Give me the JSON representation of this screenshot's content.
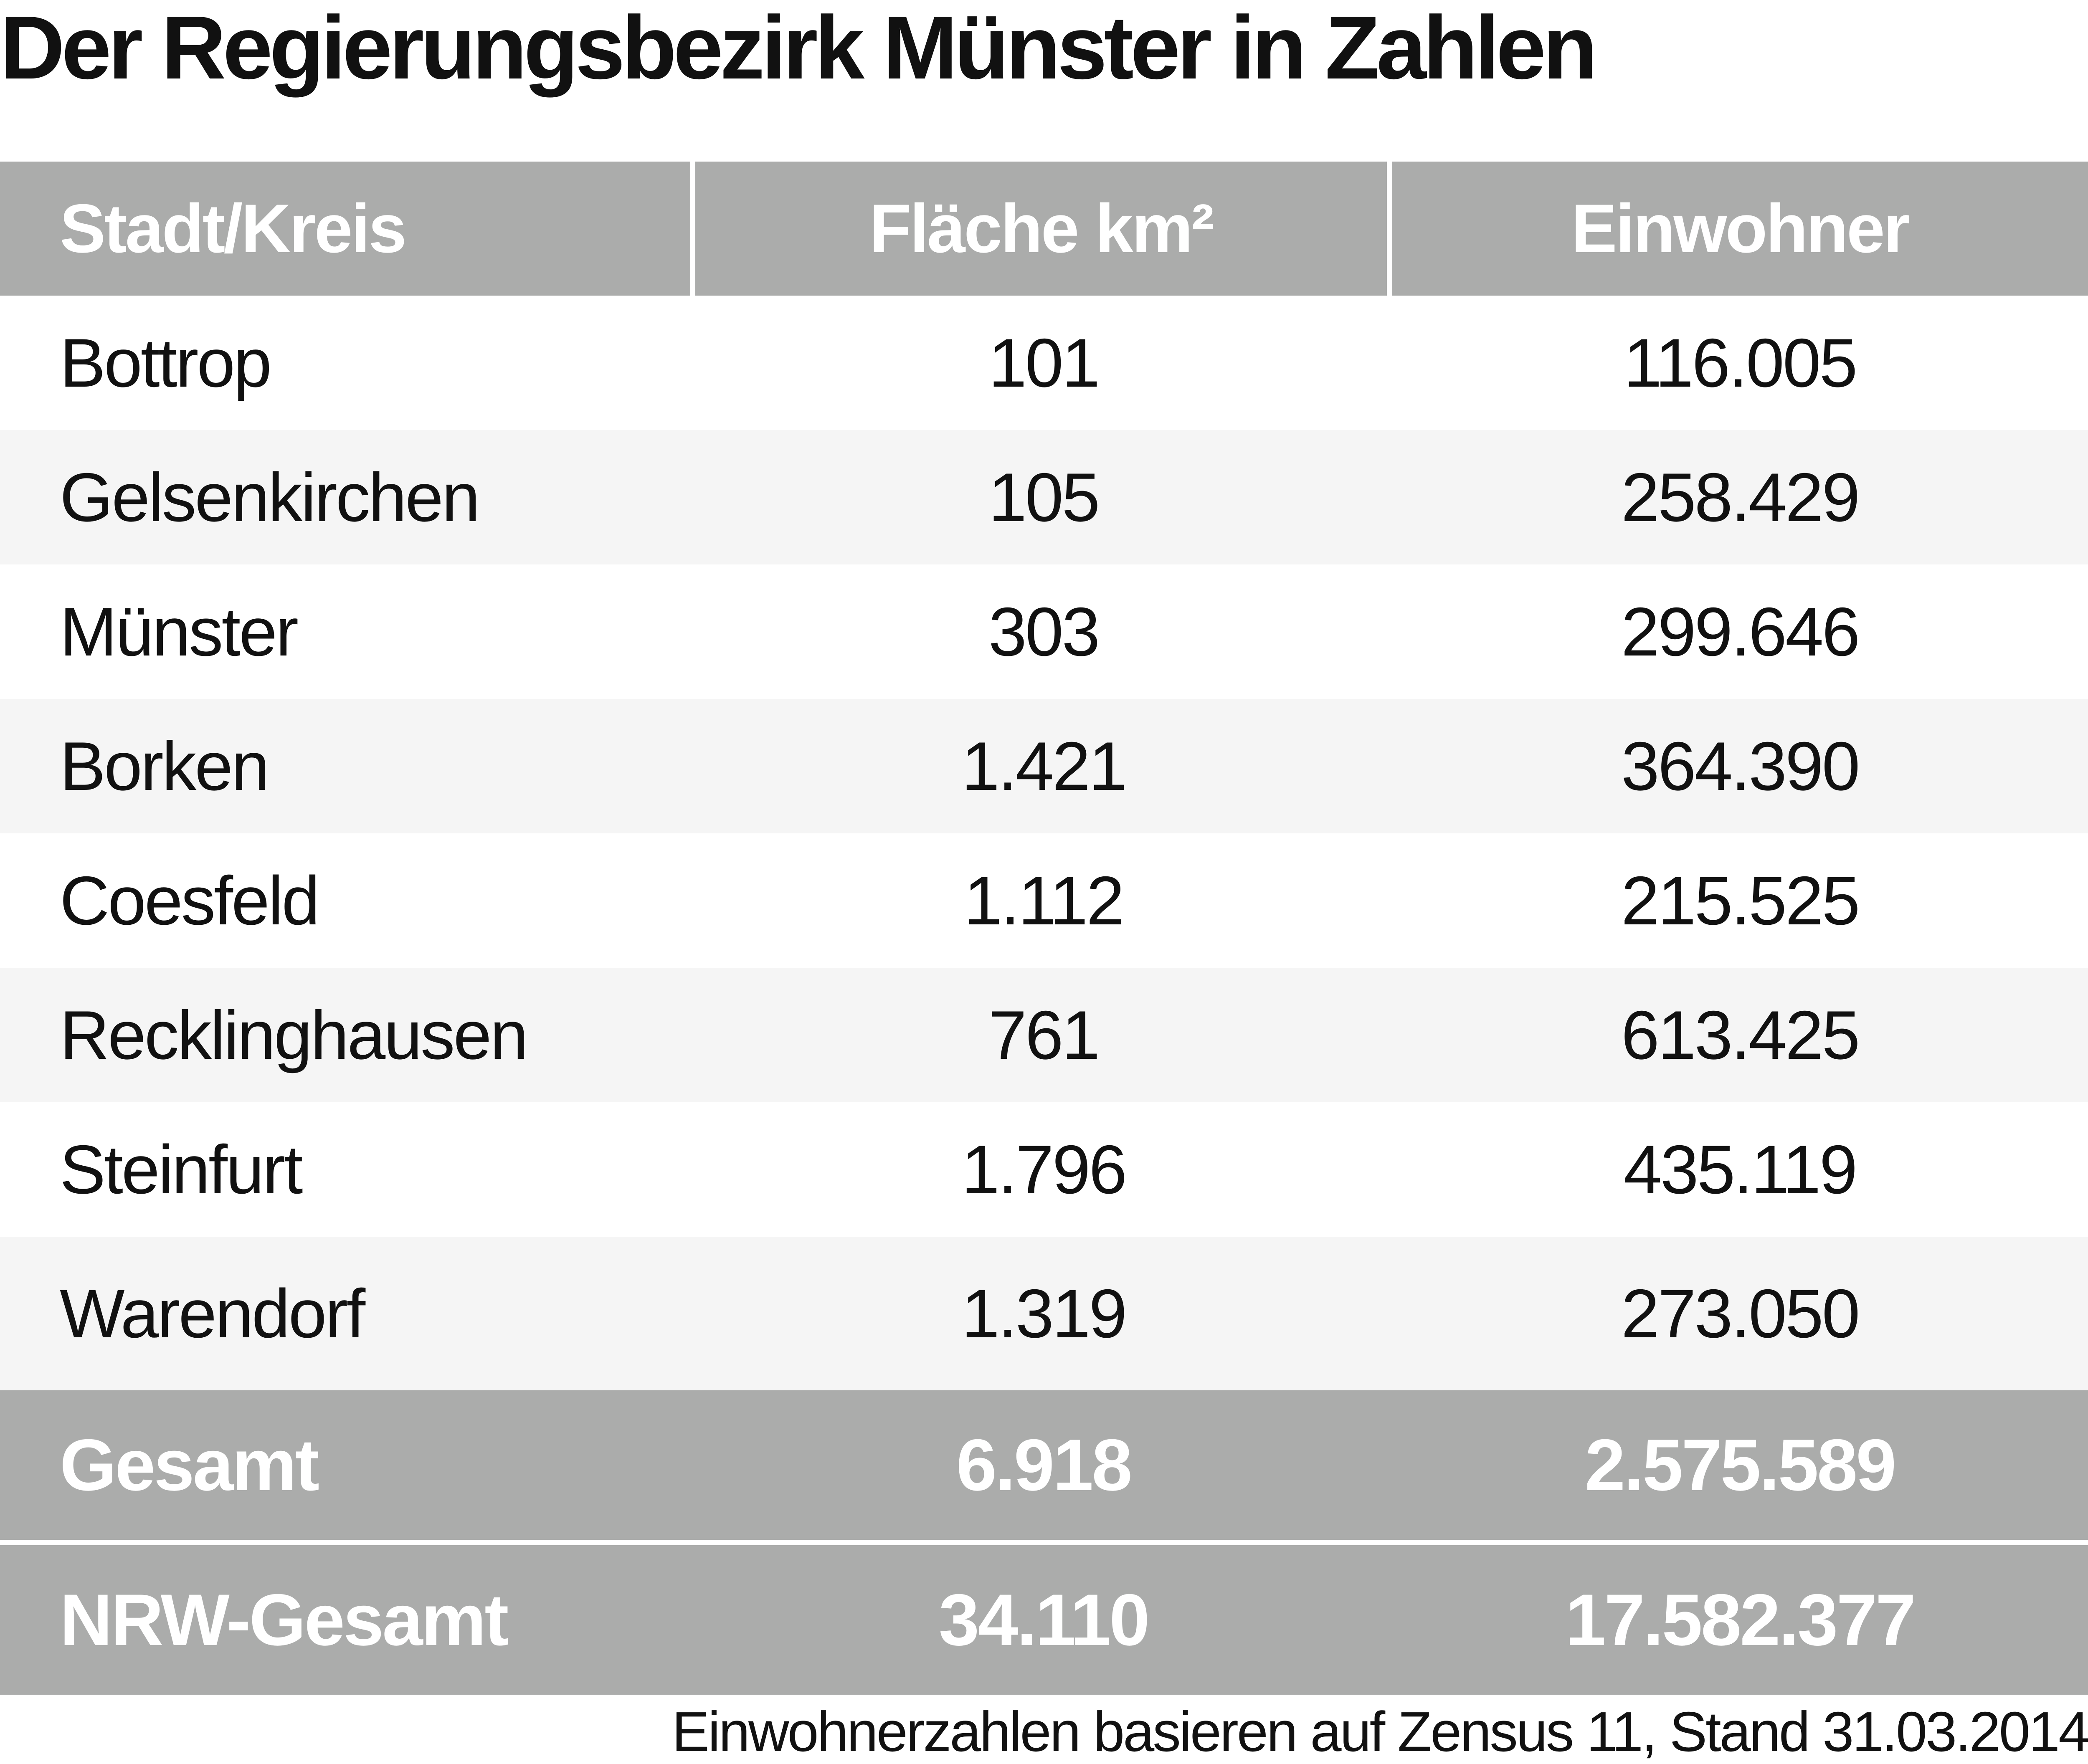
{
  "title": "Der Regierungsbezirk Münster in Zahlen",
  "table": {
    "headers": [
      "Stadt/Kreis",
      "Fläche km²",
      "Einwohner"
    ],
    "rows": [
      {
        "name": "Bottrop",
        "area": "101",
        "population": "116.005"
      },
      {
        "name": "Gelsenkirchen",
        "area": "105",
        "population": "258.429"
      },
      {
        "name": "Münster",
        "area": "303",
        "population": "299.646"
      },
      {
        "name": "Borken",
        "area": "1.421",
        "population": "364.390"
      },
      {
        "name": "Coesfeld",
        "area": "1.112",
        "population": "215.525"
      },
      {
        "name": "Recklinghausen",
        "area": "761",
        "population": "613.425"
      },
      {
        "name": "Steinfurt",
        "area": "1.796",
        "population": "435.119"
      },
      {
        "name": "Warendorf",
        "area": "1.319",
        "population": "273.050"
      }
    ],
    "totals": [
      {
        "name": "Gesamt",
        "area": "6.918",
        "population": "2.575.589"
      },
      {
        "name": "NRW-Gesamt",
        "area": "34.110",
        "population": "17.582.377"
      }
    ]
  },
  "footnote": "Einwohnerzahlen basieren auf Zensus 11, Stand 31.03.2014",
  "colors": {
    "header_bg": "#abacab",
    "alt_row_bg": "#f5f5f5",
    "text": "#111111"
  }
}
